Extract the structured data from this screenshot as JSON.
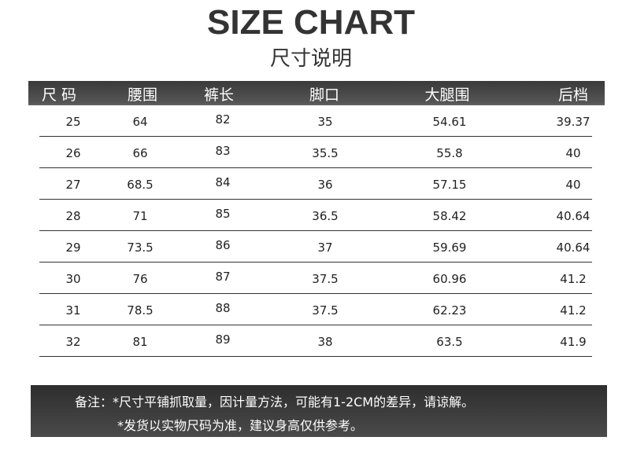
{
  "title": "SIZE CHART",
  "subtitle": "尺寸说明",
  "columns": [
    "尺 码",
    "腰围",
    "裤长",
    "脚口",
    "大腿围",
    "后档"
  ],
  "rows": [
    [
      "25",
      "64",
      "82",
      "35",
      "54.61",
      "39.37"
    ],
    [
      "26",
      "66",
      "83",
      "35.5",
      "55.8",
      "40"
    ],
    [
      "27",
      "68.5",
      "84",
      "36",
      "57.15",
      "40"
    ],
    [
      "28",
      "71",
      "85",
      "36.5",
      "58.42",
      "40.64"
    ],
    [
      "29",
      "73.5",
      "86",
      "37",
      "59.69",
      "40.64"
    ],
    [
      "30",
      "76",
      "87",
      "37.5",
      "60.96",
      "41.2"
    ],
    [
      "31",
      "78.5",
      "88",
      "37.5",
      "62.23",
      "41.2"
    ],
    [
      "32",
      "81",
      "89",
      "38",
      "63.5",
      "41.9"
    ]
  ],
  "notes": {
    "line1": "备注：*尺寸平铺抓取量，因计量方法，可能有1-2CM的差异，请谅解。",
    "line2": "*发货以实物尺码为准，建议身高仅供参考。"
  }
}
